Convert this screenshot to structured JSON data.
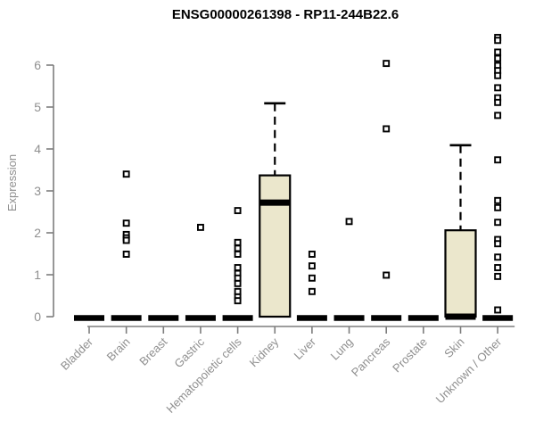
{
  "chart_data": {
    "type": "boxplot",
    "title": "ENSG00000261398 - RP11-244B22.6",
    "ylabel": "Expression",
    "xlabel": "",
    "ylim": [
      0,
      6.7
    ],
    "yticks": [
      0,
      1,
      2,
      3,
      4,
      5,
      6
    ],
    "grid": false,
    "legend": "none",
    "categories": [
      "Bladder",
      "Brain",
      "Breast",
      "Gastric",
      "Hematopoietic cells",
      "Kidney",
      "Liver",
      "Lung",
      "Pancreas",
      "Prostate",
      "Skin",
      "Unknown / Other"
    ],
    "series": [
      {
        "category": "Bladder",
        "q1": 0,
        "median": 0,
        "q3": 0,
        "whisker_low": 0,
        "whisker_high": 0,
        "outliers": []
      },
      {
        "category": "Brain",
        "q1": 0,
        "median": 0,
        "q3": 0,
        "whisker_low": 0,
        "whisker_high": 0,
        "outliers": [
          3.4,
          2.23,
          1.96,
          1.88,
          1.82,
          1.49
        ]
      },
      {
        "category": "Breast",
        "q1": 0,
        "median": 0,
        "q3": 0,
        "whisker_low": 0,
        "whisker_high": 0,
        "outliers": []
      },
      {
        "category": "Gastric",
        "q1": 0,
        "median": 0,
        "q3": 0,
        "whisker_low": 0,
        "whisker_high": 0,
        "outliers": [
          2.13
        ]
      },
      {
        "category": "Hematopoietic cells",
        "q1": 0,
        "median": 0,
        "q3": 0,
        "whisker_low": 0,
        "whisker_high": 0,
        "outliers": [
          2.53,
          1.77,
          1.63,
          1.49,
          1.17,
          1.03,
          0.92,
          0.79,
          0.6,
          0.47,
          0.38
        ]
      },
      {
        "category": "Kidney",
        "q1": 0,
        "median": 2.72,
        "q3": 3.37,
        "whisker_low": 0,
        "whisker_high": 5.09,
        "outliers": []
      },
      {
        "category": "Liver",
        "q1": 0,
        "median": 0,
        "q3": 0,
        "whisker_low": 0,
        "whisker_high": 0,
        "outliers": [
          1.49,
          1.21,
          0.92,
          0.6
        ]
      },
      {
        "category": "Lung",
        "q1": 0,
        "median": 0,
        "q3": 0,
        "whisker_low": 0,
        "whisker_high": 0,
        "outliers": [
          2.27
        ]
      },
      {
        "category": "Pancreas",
        "q1": 0,
        "median": 0,
        "q3": 0,
        "whisker_low": 0,
        "whisker_high": 0,
        "outliers": [
          6.04,
          4.48,
          0.99
        ]
      },
      {
        "category": "Prostate",
        "q1": 0,
        "median": 0,
        "q3": 0,
        "whisker_low": 0,
        "whisker_high": 0,
        "outliers": []
      },
      {
        "category": "Skin",
        "q1": 0,
        "median": 0,
        "q3": 2.06,
        "whisker_low": 0,
        "whisker_high": 4.09,
        "outliers": []
      },
      {
        "category": "Unknown / Other",
        "q1": 0,
        "median": 0,
        "q3": 0,
        "whisker_low": 0,
        "whisker_high": 0,
        "outliers": [
          6.66,
          6.59,
          6.31,
          6.16,
          5.99,
          5.87,
          5.75,
          5.46,
          5.22,
          5.11,
          4.8,
          3.74,
          2.77,
          2.6,
          2.25,
          1.84,
          1.74,
          1.42,
          1.17,
          0.96,
          0.16
        ]
      }
    ],
    "colors": {
      "box_fill": "#ebe7cc",
      "box_stroke": "#000000",
      "median": "#000000",
      "whisker": "#000000",
      "outlier_stroke": "#000000",
      "outlier_fill": "#ffffff",
      "axis": "#7d7d7d",
      "tick_label": "#8f8f8f",
      "title": "#000000",
      "background": "#ffffff"
    }
  }
}
